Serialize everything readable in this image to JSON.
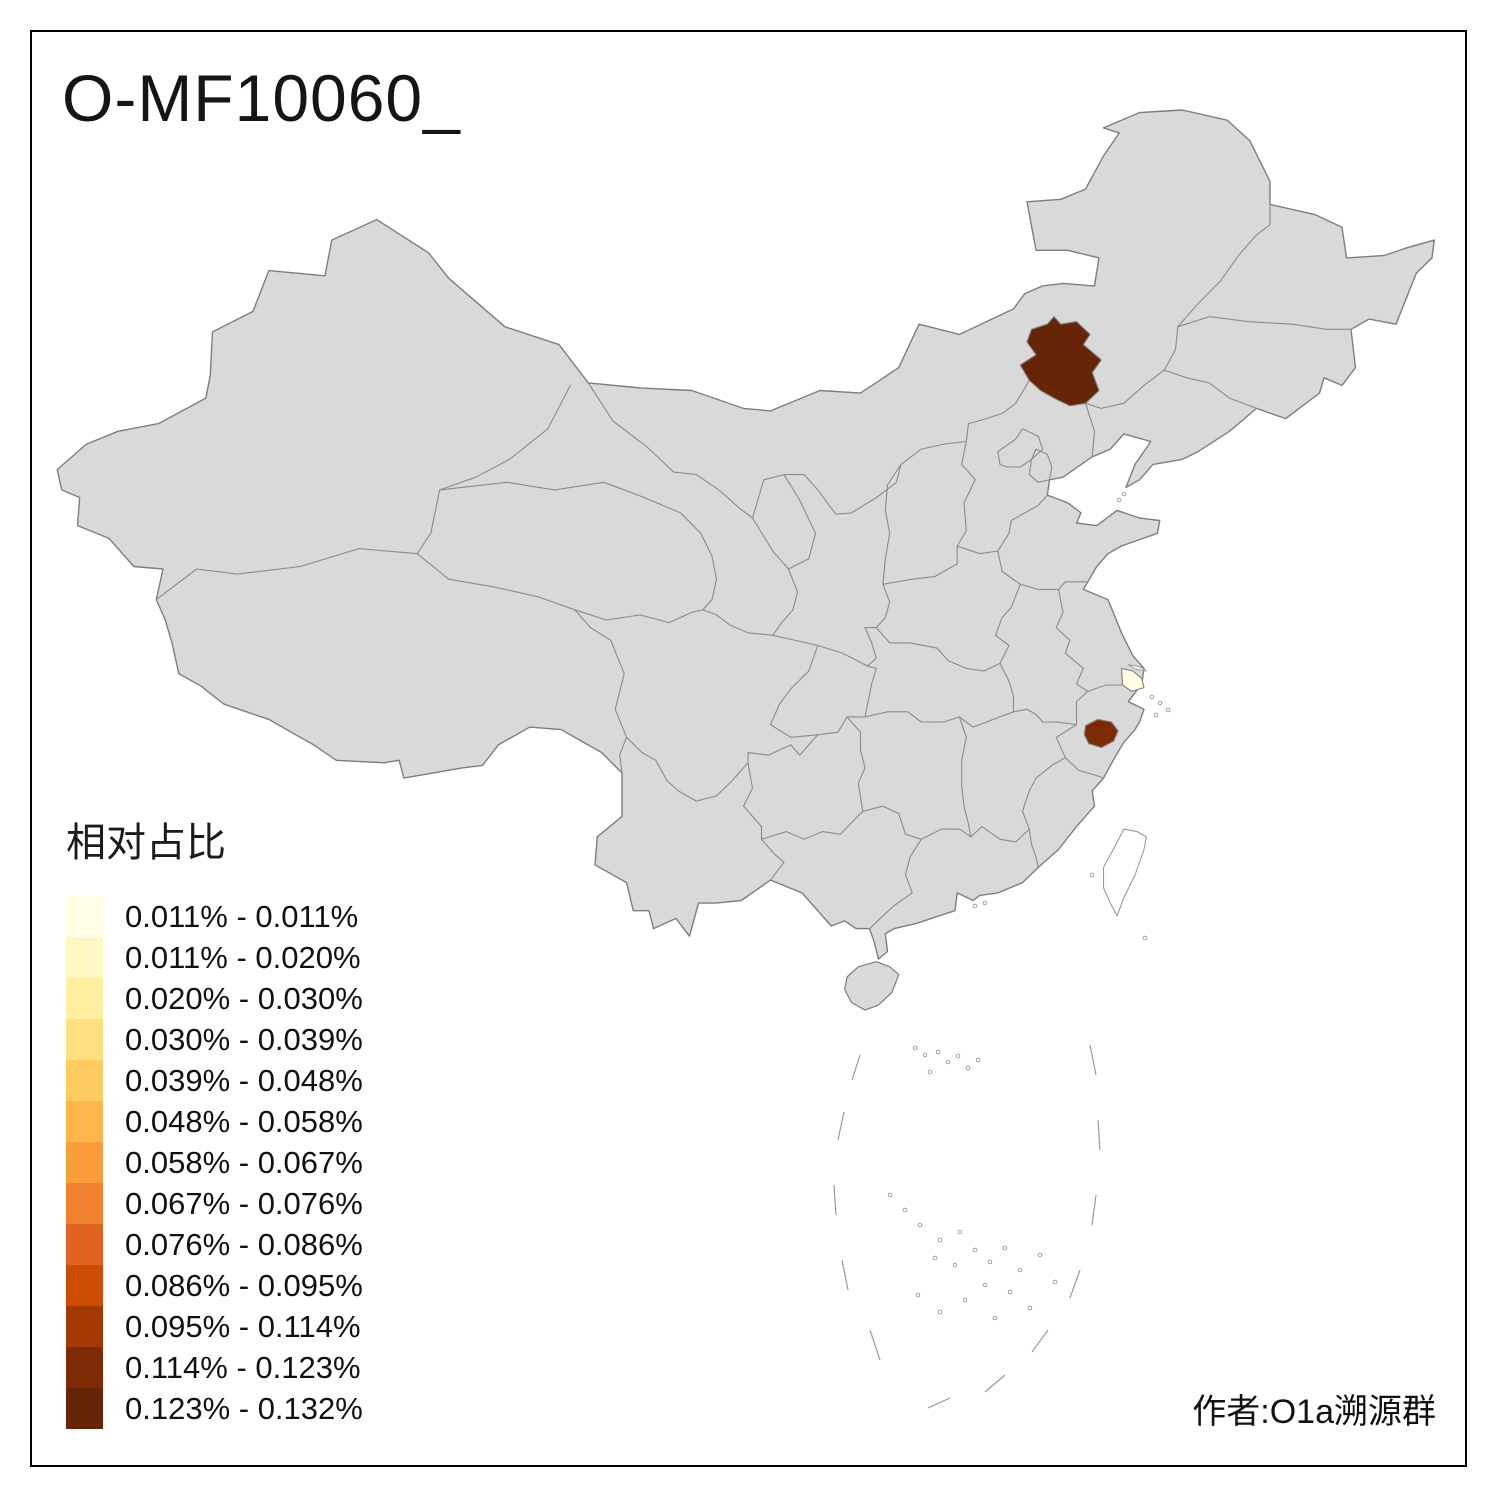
{
  "title": "O-MF10060_",
  "author": "作者:O1a溯源群",
  "legend": {
    "title": "相对占比",
    "bins": [
      {
        "label": "0.011% - 0.011%",
        "color": "#FFFFE5"
      },
      {
        "label": "0.011% - 0.020%",
        "color": "#FFF8C2"
      },
      {
        "label": "0.020% - 0.030%",
        "color": "#FEEFA0"
      },
      {
        "label": "0.030% - 0.039%",
        "color": "#FEE080"
      },
      {
        "label": "0.039% - 0.048%",
        "color": "#FECC5F"
      },
      {
        "label": "0.048% - 0.058%",
        "color": "#FEB549"
      },
      {
        "label": "0.058% - 0.067%",
        "color": "#FB9C3A"
      },
      {
        "label": "0.067% - 0.076%",
        "color": "#F1812D"
      },
      {
        "label": "0.076% - 0.086%",
        "color": "#E06420"
      },
      {
        "label": "0.086% - 0.095%",
        "color": "#CC4C02"
      },
      {
        "label": "0.095% - 0.114%",
        "color": "#A33A03"
      },
      {
        "label": "0.114% - 0.123%",
        "color": "#7E2B05"
      },
      {
        "label": "0.123% - 0.132%",
        "color": "#662506"
      }
    ]
  },
  "map": {
    "base_fill": "#D9D9D9",
    "border_color": "#7E7E7E",
    "inner_border_color": "#8A8A8A",
    "no_data_fill": "#FFFFFF",
    "regions": [
      {
        "id": "highlight-northeast",
        "bin_label": "0.123% - 0.132%",
        "color": "#662506"
      },
      {
        "id": "highlight-east",
        "bin_label": "0.114% - 0.123%",
        "color": "#7E2B05"
      },
      {
        "id": "highlight-shanghai-area",
        "bin_label": "0.011% - 0.011%",
        "color": "#FFFFE5"
      }
    ]
  }
}
